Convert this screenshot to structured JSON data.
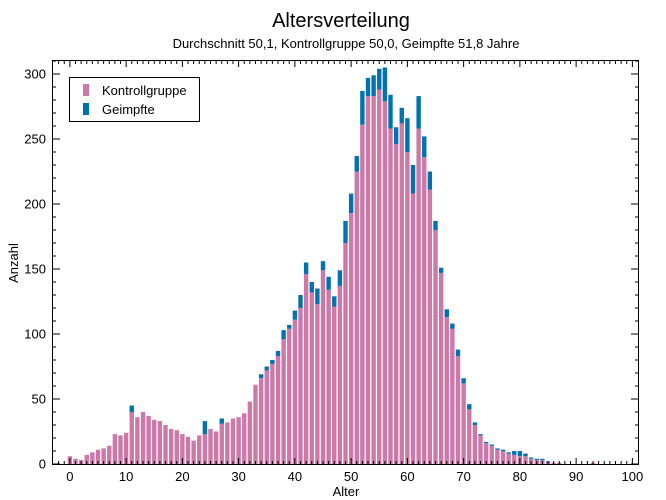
{
  "chart_data": {
    "type": "bar",
    "stacked": true,
    "title": "Altersverteilung",
    "subtitle": "Durchschnitt 50,1, Kontrollgruppe 50,0, Geimpfte 51,8 Jahre",
    "xlabel": "Alter",
    "ylabel": "Anzahl",
    "xlim": [
      -3,
      101
    ],
    "ylim": [
      0,
      310
    ],
    "x_ticks": [
      0,
      10,
      20,
      30,
      40,
      50,
      60,
      70,
      80,
      90,
      100
    ],
    "y_ticks": [
      0,
      50,
      100,
      150,
      200,
      250,
      300
    ],
    "legend_position": "top-left",
    "grid": false,
    "x": [
      0,
      1,
      2,
      3,
      4,
      5,
      6,
      7,
      8,
      9,
      10,
      11,
      12,
      13,
      14,
      15,
      16,
      17,
      18,
      19,
      20,
      21,
      22,
      23,
      24,
      25,
      26,
      27,
      28,
      29,
      30,
      31,
      32,
      33,
      34,
      35,
      36,
      37,
      38,
      39,
      40,
      41,
      42,
      43,
      44,
      45,
      46,
      47,
      48,
      49,
      50,
      51,
      52,
      53,
      54,
      55,
      56,
      57,
      58,
      59,
      60,
      61,
      62,
      63,
      64,
      65,
      66,
      67,
      68,
      69,
      70,
      71,
      72,
      73,
      74,
      75,
      76,
      77,
      78,
      79,
      80,
      81,
      82,
      83,
      84,
      85,
      86,
      87,
      88,
      89,
      90,
      91,
      92,
      93,
      94,
      95,
      96,
      97,
      98,
      99
    ],
    "series": [
      {
        "name": "Kontrollgruppe",
        "color": "#cc79a7",
        "values": [
          6,
          4,
          3,
          7,
          9,
          11,
          12,
          14,
          23,
          22,
          24,
          40,
          36,
          40,
          37,
          34,
          33,
          30,
          27,
          26,
          23,
          21,
          18,
          22,
          23,
          27,
          25,
          31,
          32,
          35,
          36,
          39,
          48,
          61,
          66,
          72,
          77,
          83,
          96,
          104,
          111,
          120,
          146,
          132,
          123,
          149,
          134,
          121,
          137,
          170,
          193,
          225,
          261,
          283,
          283,
          288,
          279,
          258,
          246,
          262,
          240,
          208,
          258,
          236,
          211,
          180,
          147,
          113,
          104,
          83,
          62,
          42,
          30,
          22,
          16,
          14,
          11,
          10,
          8,
          7,
          6,
          6,
          4,
          3,
          3,
          1,
          1,
          1,
          0,
          0,
          0,
          0,
          0,
          1,
          0,
          0,
          0,
          0,
          0,
          0
        ]
      },
      {
        "name": "Geimpfte",
        "color": "#0072b2",
        "values": [
          0,
          0,
          0,
          0,
          0,
          0,
          0,
          0,
          0,
          0,
          0,
          5,
          0,
          0,
          0,
          0,
          0,
          0,
          0,
          0,
          0,
          0,
          0,
          0,
          10,
          0,
          0,
          4,
          0,
          0,
          0,
          0,
          0,
          0,
          3,
          3,
          3,
          4,
          7,
          3,
          7,
          10,
          9,
          8,
          12,
          7,
          10,
          8,
          12,
          17,
          15,
          12,
          26,
          14,
          16,
          16,
          26,
          26,
          13,
          12,
          26,
          22,
          25,
          16,
          14,
          7,
          4,
          6,
          4,
          5,
          4,
          4,
          2,
          1,
          1,
          1,
          1,
          1,
          1,
          3,
          4,
          2,
          1,
          1,
          1,
          1,
          0,
          0,
          0,
          0,
          0,
          0,
          0,
          0,
          0,
          0,
          0,
          0,
          0,
          0
        ]
      }
    ]
  }
}
